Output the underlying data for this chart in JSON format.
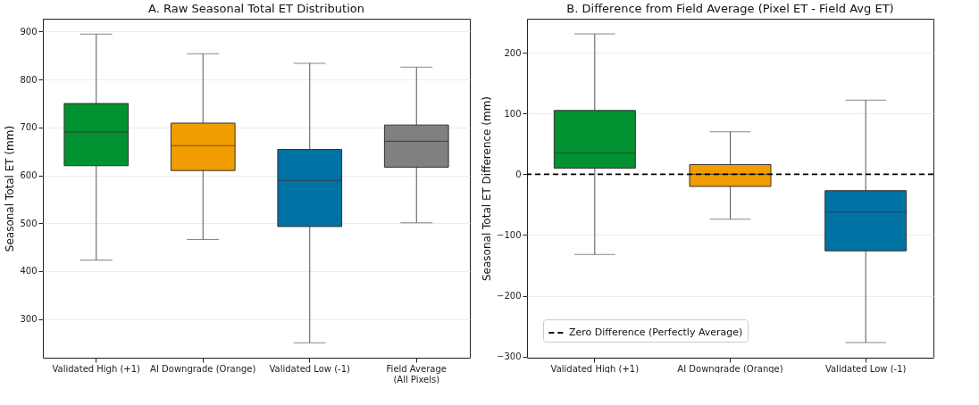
{
  "chart_data": [
    {
      "type": "box",
      "title": "A. Raw Seasonal Total ET Distribution",
      "ylabel": "Seasonal Total ET (mm)",
      "categories": [
        "Validated High (+1)",
        "AI Downgrade (Orange)",
        "Validated Low (-1)",
        "Field Average (All Pixels)"
      ],
      "colors": [
        "#009230",
        "#f19c00",
        "#0072a4",
        "#808080"
      ],
      "boxes": [
        {
          "low": 423,
          "q1": 620,
          "median": 690,
          "q3": 750,
          "high": 895
        },
        {
          "low": 466,
          "q1": 610,
          "median": 662,
          "q3": 709,
          "high": 854
        },
        {
          "low": 250,
          "q1": 493,
          "median": 589,
          "q3": 654,
          "high": 834
        },
        {
          "low": 501,
          "q1": 617,
          "median": 671,
          "q3": 705,
          "high": 826
        }
      ],
      "ylim": [
        219,
        927
      ],
      "yticks": [
        300,
        400,
        500,
        600,
        700,
        800,
        900
      ],
      "grid": "y"
    },
    {
      "type": "box",
      "title": "B. Difference from Field Average (Pixel ET - Field Avg ET)",
      "ylabel": "Seasonal Total ET Difference (mm)",
      "categories": [
        "Validated High (+1)",
        "AI Downgrade (Orange)",
        "Validated Low (-1)"
      ],
      "colors": [
        "#009230",
        "#f19c00",
        "#0072a4"
      ],
      "boxes": [
        {
          "low": -132,
          "q1": 10,
          "median": 35,
          "q3": 105,
          "high": 231
        },
        {
          "low": -74,
          "q1": -20,
          "median": 0,
          "q3": 16,
          "high": 70
        },
        {
          "low": -277,
          "q1": -126,
          "median": -62,
          "q3": -27,
          "high": 122
        }
      ],
      "ylim": [
        -302,
        256
      ],
      "yticks": [
        -300,
        -200,
        -100,
        0,
        100,
        200
      ],
      "grid": "y",
      "ref_lines": [
        {
          "axis": "y",
          "value": 0,
          "label": "Zero Difference (Perfectly Average)",
          "color": "#000000",
          "line_style": "dashed"
        }
      ],
      "legend": "bottom left"
    }
  ]
}
